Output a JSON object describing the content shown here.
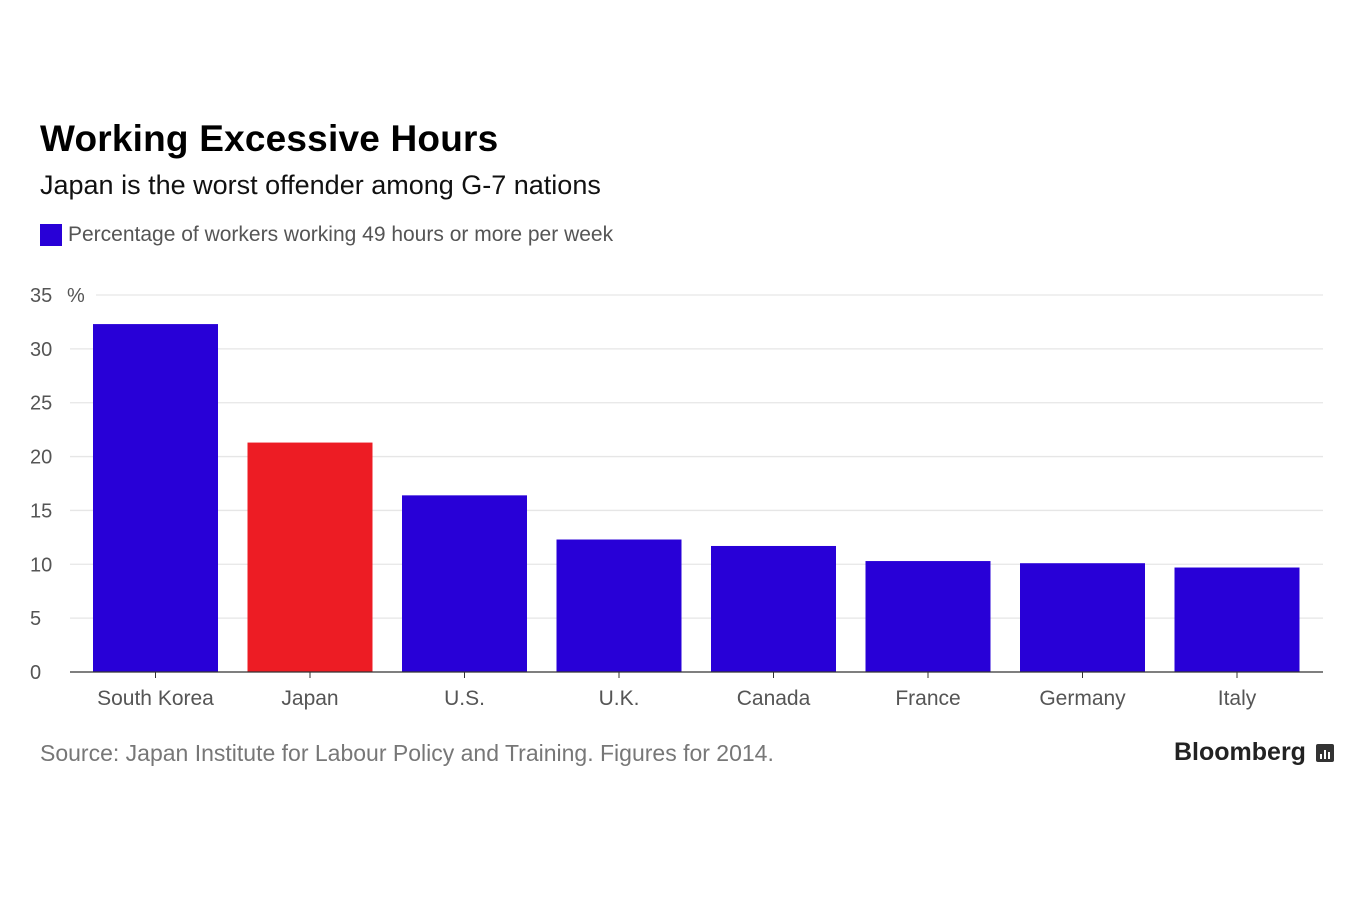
{
  "chart_data": {
    "type": "bar",
    "title": "Working Excessive Hours",
    "subtitle": "Japan is the worst offender among G-7 nations",
    "legend": "Percentage of workers working 49 hours or more per week",
    "categories": [
      "South Korea",
      "Japan",
      "U.S.",
      "U.K.",
      "Canada",
      "France",
      "Germany",
      "Italy"
    ],
    "values": [
      32.3,
      21.3,
      16.4,
      12.3,
      11.7,
      10.3,
      10.1,
      9.7
    ],
    "highlight": "Japan",
    "ylim": [
      0,
      35
    ],
    "yticks": [
      "0",
      "5",
      "10",
      "15",
      "20",
      "25",
      "30",
      "35"
    ],
    "yunit": "%",
    "grid": true,
    "xlabel": "",
    "ylabel": "",
    "colors": {
      "default": "#2800d7",
      "highlight": "#ed1c24"
    }
  },
  "footer": {
    "source": "Source: Japan Institute for Labour Policy and Training. Figures for 2014.",
    "brand": "Bloomberg"
  }
}
